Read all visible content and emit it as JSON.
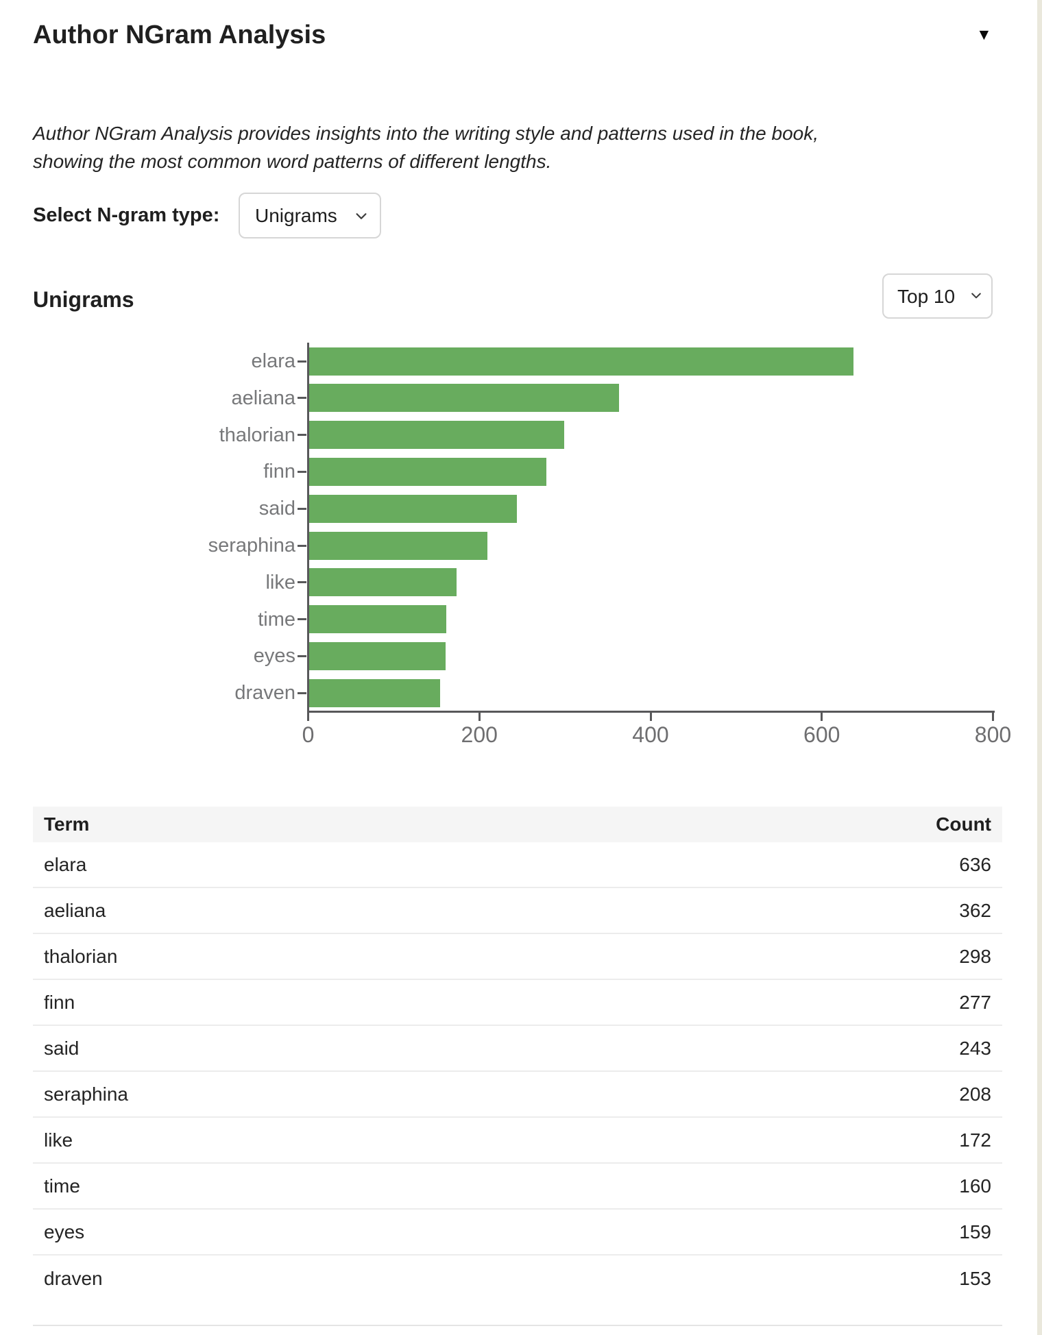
{
  "header": {
    "title": "Author NGram Analysis",
    "collapse_icon": "▼"
  },
  "description": {
    "line1": "Author NGram Analysis provides insights into the writing style and patterns used in the book,",
    "line2": "showing the most common word patterns of different lengths."
  },
  "controls": {
    "ngram_label": "Select N-gram type:",
    "ngram_selected": "Unigrams",
    "top_n_selected": "Top 10"
  },
  "section": {
    "title": "Unigrams"
  },
  "chart_data": {
    "type": "bar",
    "orientation": "horizontal",
    "title": "Unigrams",
    "categories": [
      "elara",
      "aeliana",
      "thalorian",
      "finn",
      "said",
      "seraphina",
      "like",
      "time",
      "eyes",
      "draven"
    ],
    "values": [
      636,
      362,
      298,
      277,
      243,
      208,
      172,
      160,
      159,
      153
    ],
    "xlabel": "",
    "ylabel": "",
    "xlim": [
      0,
      800
    ],
    "xticks": [
      0,
      200,
      400,
      600,
      800
    ],
    "bar_color": "#68ac5e",
    "axis_color": "#58585a",
    "tick_label_color": "#77787a",
    "grid": false,
    "legend": null
  },
  "table": {
    "columns": [
      "Term",
      "Count"
    ]
  }
}
